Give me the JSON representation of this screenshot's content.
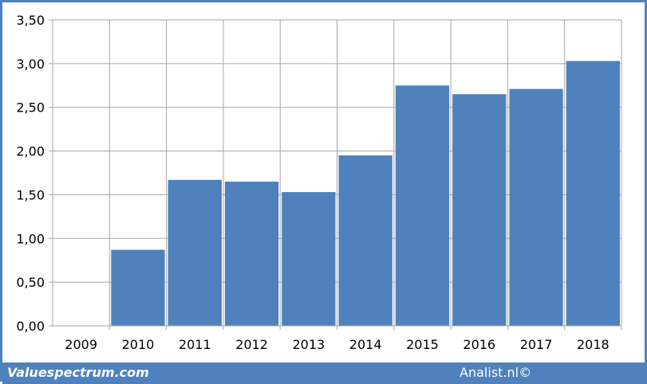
{
  "chart_data": {
    "type": "bar",
    "categories": [
      "2009",
      "2010",
      "2011",
      "2012",
      "2013",
      "2014",
      "2015",
      "2016",
      "2017",
      "2018"
    ],
    "values": [
      null,
      0.87,
      1.67,
      1.65,
      1.53,
      1.95,
      2.75,
      2.65,
      2.71,
      3.03
    ],
    "ylim": [
      0,
      3.5
    ],
    "yticks": [
      "0,00",
      "0,50",
      "1,00",
      "1,50",
      "2,00",
      "2,50",
      "3,00",
      "3,50"
    ],
    "title": "",
    "xlabel": "",
    "ylabel": "",
    "grid": true,
    "legend": "none",
    "bar_color": "#4f81bd",
    "grid_color": "#a6a6a6"
  },
  "footer": {
    "source_left": "Valuespectrum.com",
    "source_right": "Analist.nl©",
    "background": "#4f81bd"
  }
}
